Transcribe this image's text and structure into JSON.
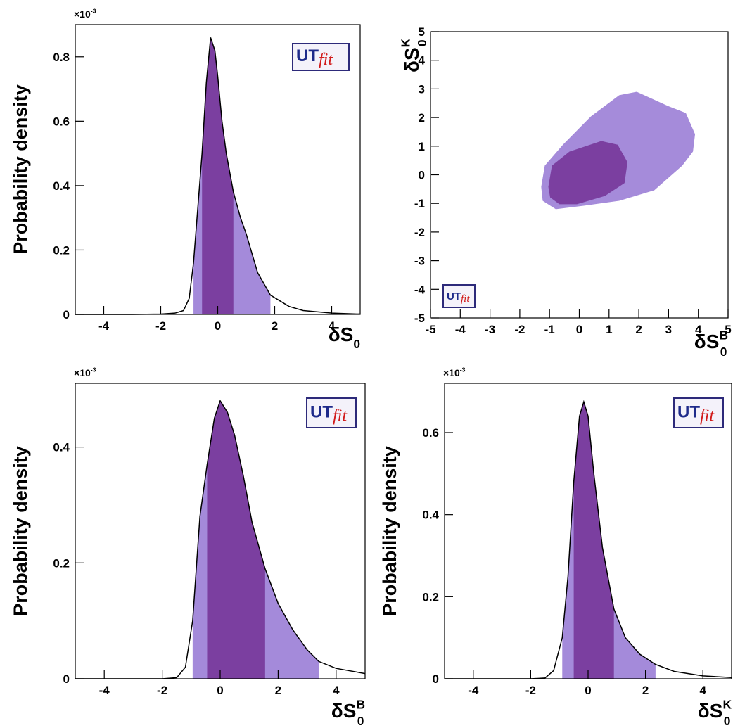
{
  "chart_data": [
    {
      "type": "density",
      "ylabel": "Probability density",
      "xlabel": {
        "base": "δS",
        "sub": "0"
      },
      "multiplier": {
        "base": "×10",
        "sup": "-3"
      },
      "logo": {
        "base": "UT",
        "sub": "fit"
      },
      "x": [
        -5,
        -3,
        -2,
        -1.5,
        -1.2,
        -1,
        -0.85,
        -0.7,
        -0.55,
        -0.4,
        -0.25,
        -0.1,
        0,
        0.15,
        0.3,
        0.55,
        0.8,
        1,
        1.4,
        1.85,
        2.5,
        3,
        4,
        5
      ],
      "values": [
        0,
        0,
        0.001,
        0.004,
        0.012,
        0.05,
        0.16,
        0.33,
        0.5,
        0.72,
        0.86,
        0.82,
        0.74,
        0.6,
        0.5,
        0.38,
        0.3,
        0.25,
        0.13,
        0.06,
        0.025,
        0.012,
        0.004,
        0.001
      ],
      "color": "#000000",
      "regions": [
        {
          "range": [
            -0.85,
            1.85
          ],
          "color": "#a48ada"
        },
        {
          "range": [
            -0.55,
            0.55
          ],
          "color": "#7b3fa0"
        }
      ],
      "xlim": [
        -5,
        5
      ],
      "ylim": [
        0,
        0.9
      ],
      "xticks": [
        -4,
        -2,
        0,
        2,
        4
      ],
      "yticks": [
        0,
        0.2,
        0.4,
        0.6,
        0.8
      ]
    },
    {
      "type": "contour",
      "xlabel": {
        "base": "δS",
        "sub": "0",
        "sup": "B"
      },
      "ylabel": {
        "base": "δS",
        "sub": "0",
        "sup": "K"
      },
      "logo": {
        "base": "UT",
        "sub": "fit"
      },
      "levels": [
        {
          "color": "#a58bda",
          "x": [
            -1.28,
            -1.16,
            -0.55,
            0.39,
            1.34,
            1.93,
            2.99,
            3.58,
            3.89,
            3.82,
            3.46,
            2.52,
            1.34,
            0.15,
            -0.79,
            -1.23
          ],
          "y": [
            -0.42,
            0.32,
            1.05,
            2.04,
            2.78,
            2.9,
            2.4,
            2.16,
            1.42,
            0.81,
            0.32,
            -0.54,
            -0.91,
            -1.08,
            -1.2,
            -0.91
          ]
        },
        {
          "color": "#7b3fa0",
          "x": [
            -1.04,
            -0.92,
            -0.33,
            0.74,
            1.29,
            1.62,
            1.52,
            0.86,
            -0.08,
            -0.67,
            -0.98
          ],
          "y": [
            -0.42,
            0.32,
            0.81,
            1.18,
            1.05,
            0.44,
            -0.29,
            -0.74,
            -1.03,
            -1.03,
            -0.79
          ]
        }
      ],
      "xlim": [
        -5,
        5
      ],
      "ylim": [
        -5,
        5
      ],
      "xticks": [
        -5,
        -4,
        -3,
        -2,
        -1,
        0,
        1,
        2,
        3,
        4,
        5
      ],
      "yticks": [
        -5,
        -4,
        -3,
        -2,
        -1,
        0,
        1,
        2,
        3,
        4,
        5
      ]
    },
    {
      "type": "density",
      "ylabel": "Probability density",
      "xlabel": {
        "base": "δS",
        "sub": "0",
        "sup": "B"
      },
      "multiplier": {
        "base": "×10",
        "sup": "-3"
      },
      "logo": {
        "base": "UT",
        "sub": "fit"
      },
      "x": [
        -5,
        -2,
        -1.5,
        -1.2,
        -0.95,
        -0.7,
        -0.45,
        -0.2,
        0,
        0.25,
        0.5,
        0.8,
        1.1,
        1.55,
        2,
        2.5,
        3,
        3.4,
        4,
        5
      ],
      "values": [
        0,
        0,
        0.002,
        0.02,
        0.1,
        0.28,
        0.37,
        0.45,
        0.48,
        0.46,
        0.42,
        0.35,
        0.27,
        0.19,
        0.13,
        0.085,
        0.05,
        0.03,
        0.018,
        0.009
      ],
      "color": "#000000",
      "regions": [
        {
          "range": [
            -0.95,
            3.4
          ],
          "color": "#a48ada"
        },
        {
          "range": [
            -0.45,
            1.55
          ],
          "color": "#7b3fa0"
        }
      ],
      "xlim": [
        -5,
        5
      ],
      "ylim": [
        0,
        0.51
      ],
      "xticks": [
        -4,
        -2,
        0,
        2,
        4
      ],
      "yticks": [
        0,
        0.2,
        0.4
      ]
    },
    {
      "type": "density",
      "ylabel": "Probability density",
      "xlabel": {
        "base": "δS",
        "sub": "0",
        "sup": "K"
      },
      "multiplier": {
        "base": "×10",
        "sup": "-3"
      },
      "logo": {
        "base": "UT",
        "sub": "fit"
      },
      "x": [
        -5,
        -2,
        -1.5,
        -1.2,
        -0.9,
        -0.7,
        -0.5,
        -0.3,
        -0.15,
        0,
        0.2,
        0.5,
        0.9,
        1.3,
        1.8,
        2.35,
        3,
        4,
        5
      ],
      "values": [
        0,
        0,
        0.002,
        0.02,
        0.1,
        0.25,
        0.48,
        0.64,
        0.675,
        0.64,
        0.5,
        0.32,
        0.17,
        0.1,
        0.06,
        0.035,
        0.018,
        0.007,
        0.003
      ],
      "color": "#000000",
      "regions": [
        {
          "range": [
            -0.9,
            2.35
          ],
          "color": "#a48ada"
        },
        {
          "range": [
            -0.5,
            0.9
          ],
          "color": "#7b3fa0"
        }
      ],
      "xlim": [
        -5,
        5
      ],
      "ylim": [
        0,
        0.72
      ],
      "xticks": [
        -4,
        -2,
        0,
        2,
        4
      ],
      "yticks": [
        0,
        0.2,
        0.4,
        0.6
      ]
    }
  ]
}
